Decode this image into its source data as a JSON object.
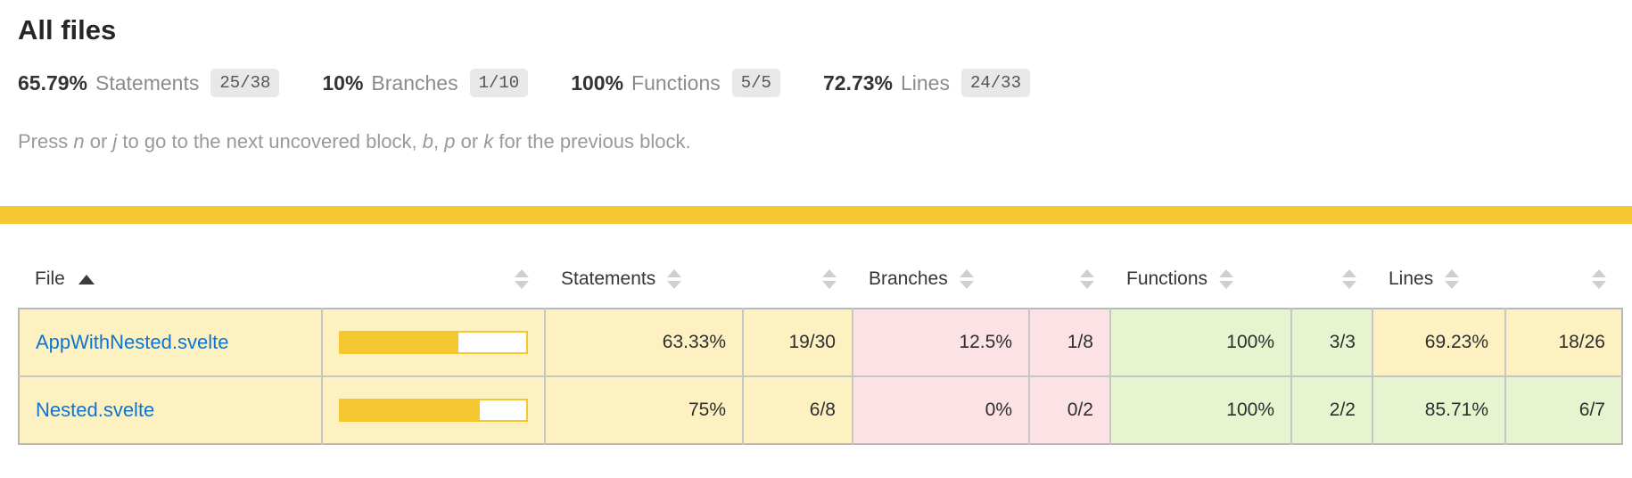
{
  "colors": {
    "accent_yellow": "#f5c831",
    "low_bg": "#fce1e5",
    "medium_bg": "#fdf1c2",
    "high_bg": "#e6f5d0",
    "link_blue": "#0d74d1",
    "fraction_badge_bg": "#e8e8e8"
  },
  "header": {
    "title": "All files",
    "metrics": [
      {
        "pct": "65.79%",
        "label": "Statements",
        "fraction": "25/38"
      },
      {
        "pct": "10%",
        "label": "Branches",
        "fraction": "1/10"
      },
      {
        "pct": "100%",
        "label": "Functions",
        "fraction": "5/5"
      },
      {
        "pct": "72.73%",
        "label": "Lines",
        "fraction": "24/33"
      }
    ],
    "help": {
      "t1": "Press ",
      "k1": "n",
      "t2": " or ",
      "k2": "j",
      "t3": " to go to the next uncovered block, ",
      "k3": "b",
      "t4": ", ",
      "k4": "p",
      "t5": " or ",
      "k5": "k",
      "t6": " for the previous block."
    }
  },
  "table": {
    "columns": {
      "file": "File",
      "statements": "Statements",
      "branches": "Branches",
      "functions": "Functions",
      "lines": "Lines"
    },
    "sort": {
      "column": "file",
      "direction": "asc"
    },
    "rows": [
      {
        "file": "AppWithNested.svelte",
        "level": "medium",
        "bar_pct": 63.33,
        "statements": {
          "pct": "63.33%",
          "fraction": "19/30",
          "level": "medium"
        },
        "branches": {
          "pct": "12.5%",
          "fraction": "1/8",
          "level": "low"
        },
        "functions": {
          "pct": "100%",
          "fraction": "3/3",
          "level": "high"
        },
        "lines": {
          "pct": "69.23%",
          "fraction": "18/26",
          "level": "medium"
        }
      },
      {
        "file": "Nested.svelte",
        "level": "medium",
        "bar_pct": 75,
        "statements": {
          "pct": "75%",
          "fraction": "6/8",
          "level": "medium"
        },
        "branches": {
          "pct": "0%",
          "fraction": "0/2",
          "level": "low"
        },
        "functions": {
          "pct": "100%",
          "fraction": "2/2",
          "level": "high"
        },
        "lines": {
          "pct": "85.71%",
          "fraction": "6/7",
          "level": "high"
        }
      }
    ]
  }
}
